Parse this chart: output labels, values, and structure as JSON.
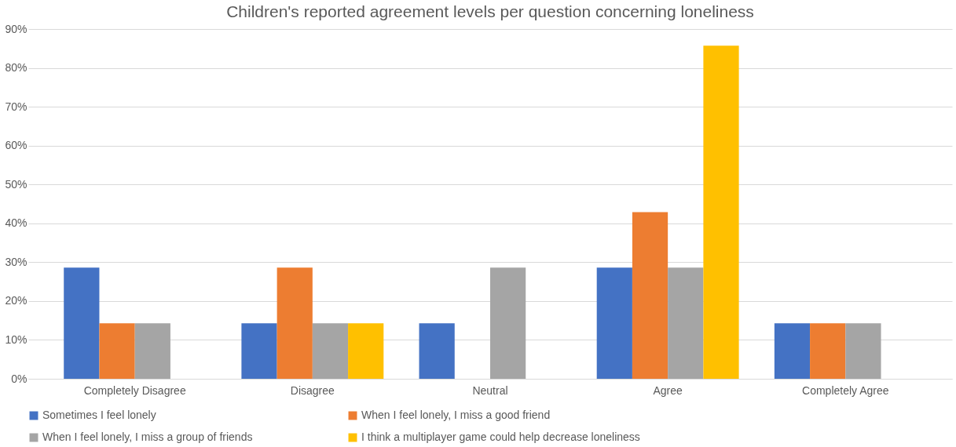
{
  "chart_data": {
    "type": "bar",
    "title": "Children's reported agreement levels per question concerning loneliness",
    "categories": [
      "Completely Disagree",
      "Disagree",
      "Neutral",
      "Agree",
      "Completely Agree"
    ],
    "series": [
      {
        "name": "Sometimes I feel lonely",
        "color": "#4472c4",
        "values": [
          28.6,
          14.3,
          14.3,
          28.6,
          14.3
        ]
      },
      {
        "name": "When I feel lonely, I miss a good friend",
        "color": "#ed7d31",
        "values": [
          14.3,
          28.6,
          0,
          42.9,
          14.3
        ]
      },
      {
        "name": "When I feel lonely, I miss a group of friends",
        "color": "#a5a5a5",
        "values": [
          14.3,
          14.3,
          28.6,
          28.6,
          14.3
        ]
      },
      {
        "name": "I think a multiplayer game could help decrease loneliness",
        "color": "#ffc000",
        "values": [
          0,
          14.3,
          0,
          85.7,
          0
        ]
      }
    ],
    "ylim": [
      0,
      90
    ],
    "yticks": [
      {
        "value": 0,
        "label": "0%"
      },
      {
        "value": 10,
        "label": "10%"
      },
      {
        "value": 20,
        "label": "20%"
      },
      {
        "value": 30,
        "label": "30%"
      },
      {
        "value": 40,
        "label": "40%"
      },
      {
        "value": 50,
        "label": "50%"
      },
      {
        "value": 60,
        "label": "60%"
      },
      {
        "value": 70,
        "label": "70%"
      },
      {
        "value": 80,
        "label": "80%"
      },
      {
        "value": 90,
        "label": "90%"
      }
    ],
    "grid": "y",
    "legend": "bottom"
  }
}
